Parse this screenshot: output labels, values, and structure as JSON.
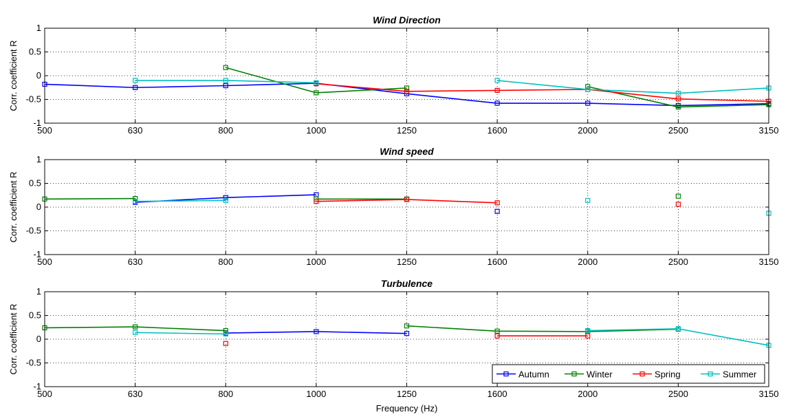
{
  "chart_data": [
    {
      "type": "line",
      "title": "Wind Direction",
      "xlabel": "",
      "ylabel": "Corr. coefficient R",
      "categories": [
        "500",
        "630",
        "800",
        "1000",
        "1250",
        "1600",
        "2000",
        "2500",
        "3150"
      ],
      "ylim": [
        -1,
        1
      ],
      "yticks": [
        "-1",
        "-0.5",
        "0",
        "0.5",
        "1"
      ],
      "grid": true,
      "series": [
        {
          "name": "Autumn",
          "color": "#0000ff",
          "values": [
            -0.18,
            -0.25,
            -0.21,
            -0.16,
            -0.38,
            -0.58,
            -0.58,
            -0.63,
            -0.59
          ]
        },
        {
          "name": "Winter",
          "color": "#008000",
          "values": [
            null,
            null,
            0.17,
            -0.36,
            -0.26,
            null,
            -0.23,
            -0.66,
            -0.61
          ]
        },
        {
          "name": "Spring",
          "color": "#ff0000",
          "values": [
            null,
            null,
            null,
            -0.17,
            -0.33,
            -0.31,
            -0.29,
            -0.49,
            -0.54
          ]
        },
        {
          "name": "Summer",
          "color": "#00bfbf",
          "values": [
            null,
            -0.1,
            -0.1,
            -0.15,
            null,
            -0.1,
            -0.29,
            -0.37,
            -0.26
          ]
        }
      ]
    },
    {
      "type": "line",
      "title": "Wind speed",
      "xlabel": "",
      "ylabel": "Corr. coefficient R",
      "categories": [
        "500",
        "630",
        "800",
        "1000",
        "1250",
        "1600",
        "2000",
        "2500",
        "3150"
      ],
      "ylim": [
        -1,
        1
      ],
      "yticks": [
        "-1",
        "-0.5",
        "0",
        "0.5",
        "1"
      ],
      "grid": true,
      "series": [
        {
          "name": "Autumn",
          "color": "#0000ff",
          "values": [
            null,
            0.1,
            0.2,
            0.26,
            null,
            -0.09,
            null,
            null,
            null
          ]
        },
        {
          "name": "Winter",
          "color": "#008000",
          "values": [
            0.17,
            0.18,
            null,
            0.17,
            0.17,
            null,
            null,
            0.23,
            null
          ]
        },
        {
          "name": "Spring",
          "color": "#ff0000",
          "values": [
            null,
            null,
            null,
            0.12,
            0.16,
            0.09,
            null,
            0.06,
            null
          ]
        },
        {
          "name": "Summer",
          "color": "#00bfbf",
          "values": [
            null,
            0.12,
            0.14,
            null,
            null,
            null,
            0.14,
            null,
            -0.13
          ]
        }
      ]
    },
    {
      "type": "line",
      "title": "Turbulence",
      "xlabel": "Frequency (Hz)",
      "ylabel": "Corr. coefficient R",
      "categories": [
        "500",
        "630",
        "800",
        "1000",
        "1250",
        "1600",
        "2000",
        "2500",
        "3150"
      ],
      "ylim": [
        -1,
        1
      ],
      "yticks": [
        "-1",
        "-0.5",
        "0",
        "0.5",
        "1"
      ],
      "grid": true,
      "series": [
        {
          "name": "Autumn",
          "color": "#0000ff",
          "values": [
            null,
            null,
            0.13,
            0.16,
            0.12,
            null,
            null,
            null,
            null
          ]
        },
        {
          "name": "Winter",
          "color": "#008000",
          "values": [
            0.24,
            0.26,
            0.18,
            null,
            0.28,
            0.17,
            0.16,
            0.21,
            null
          ]
        },
        {
          "name": "Spring",
          "color": "#ff0000",
          "values": [
            null,
            null,
            -0.09,
            null,
            null,
            0.07,
            0.07,
            null,
            null
          ]
        },
        {
          "name": "Summer",
          "color": "#00bfbf",
          "values": [
            null,
            0.14,
            0.11,
            null,
            null,
            null,
            0.18,
            0.22,
            -0.13
          ]
        }
      ],
      "legend": {
        "position": "bottom-right",
        "entries": [
          "Autumn",
          "Winter",
          "Spring",
          "Summer"
        ]
      }
    }
  ]
}
